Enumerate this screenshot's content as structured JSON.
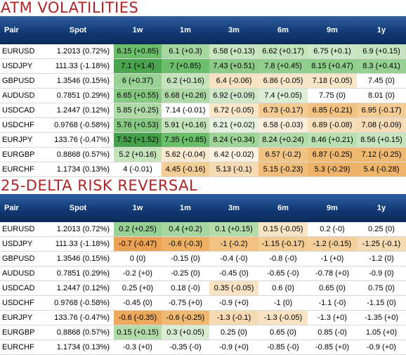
{
  "atm": {
    "title": "ATM VOLATILITIES",
    "headers": [
      "Pair",
      "Spot",
      "1w",
      "1m",
      "3m",
      "6m",
      "9m",
      "1y"
    ],
    "rows": [
      {
        "pair": "EURUSD",
        "spot": "1.2013 (0.72%)",
        "cells": [
          {
            "text": "6.15 (+0.85)",
            "color": "#6bbf6b"
          },
          {
            "text": "6.1 (+0.3)",
            "color": "#a7d7a0"
          },
          {
            "text": "6.58 (+0.13)",
            "color": "#c9e6c1"
          },
          {
            "text": "6.62 (+0.17)",
            "color": "#c3e3ba"
          },
          {
            "text": "6.75 (+0.1)",
            "color": "#cce7c5"
          },
          {
            "text": "6.9 (+0.15)",
            "color": "#c6e4be"
          }
        ]
      },
      {
        "pair": "USDJPY",
        "spot": "111.33 (-1.18%)",
        "cells": [
          {
            "text": "7.1 (+1.4)",
            "color": "#4aa54e"
          },
          {
            "text": "7 (+0.85)",
            "color": "#6bbf6b"
          },
          {
            "text": "7.43 (+0.51)",
            "color": "#8ccc88"
          },
          {
            "text": "7.8 (+0.45)",
            "color": "#92cf8e"
          },
          {
            "text": "8.15 (+0.47)",
            "color": "#90ce8c"
          },
          {
            "text": "8.3 (+0.41)",
            "color": "#96d092"
          }
        ]
      },
      {
        "pair": "GBPUSD",
        "spot": "1.3546 (0.15%)",
        "cells": [
          {
            "text": "6 (+0.37)",
            "color": "#99d295"
          },
          {
            "text": "6.2 (+0.16)",
            "color": "#c5e4bc"
          },
          {
            "text": "6.4 (-0.06)",
            "color": "#f7e2c2"
          },
          {
            "text": "6.86 (-0.05)",
            "color": "#f8e6c9"
          },
          {
            "text": "7.18 (-0.05)",
            "color": "#f8e6c9"
          },
          {
            "text": "7.45 (0)",
            "color": "#ffffff"
          }
        ]
      },
      {
        "pair": "AUDUSD",
        "spot": "0.7851 (0.29%)",
        "cells": [
          {
            "text": "6.65 (+0.55)",
            "color": "#86c982"
          },
          {
            "text": "6.68 (+0.26)",
            "color": "#afdaa7"
          },
          {
            "text": "6.92 (+0.09)",
            "color": "#cee8c7"
          },
          {
            "text": "7.4 (+0.05)",
            "color": "#dcefd6"
          },
          {
            "text": "7.75 (0)",
            "color": "#ffffff"
          },
          {
            "text": "8.01 (0)",
            "color": "#ffffff"
          }
        ]
      },
      {
        "pair": "USDCAD",
        "spot": "1.2447 (0.12%)",
        "cells": [
          {
            "text": "5.85 (+0.25)",
            "color": "#b0dba8"
          },
          {
            "text": "7.14 (-0.01)",
            "color": "#ffffff"
          },
          {
            "text": "6.72 (-0.05)",
            "color": "#f8e6c9"
          },
          {
            "text": "6.73 (-0.17)",
            "color": "#f3cc94"
          },
          {
            "text": "6.85 (-0.21)",
            "color": "#f1c282"
          },
          {
            "text": "6.95 (-0.17)",
            "color": "#f3cc94"
          }
        ]
      },
      {
        "pair": "USDCHF",
        "spot": "0.9768 (-0.58%)",
        "cells": [
          {
            "text": "5.76 (+0.53)",
            "color": "#88ca84"
          },
          {
            "text": "5.91 (+0.16)",
            "color": "#c5e4bc"
          },
          {
            "text": "6.21 (+0.02)",
            "color": "#e6f3e2"
          },
          {
            "text": "6.58 (-0.03)",
            "color": "#fbeedb"
          },
          {
            "text": "6.89 (-0.08)",
            "color": "#f7dfbc"
          },
          {
            "text": "7.08 (-0.09)",
            "color": "#f6dcb6"
          }
        ]
      },
      {
        "pair": "EURJPY",
        "spot": "133.76 (-0.47%)",
        "cells": [
          {
            "text": "7.52 (+1.52)",
            "color": "#45a24a"
          },
          {
            "text": "7.35 (+0.85)",
            "color": "#6bbf6b"
          },
          {
            "text": "8.24 (+0.34)",
            "color": "#9ed498"
          },
          {
            "text": "8.24 (+0.24)",
            "color": "#b1dba9"
          },
          {
            "text": "8.46 (+0.21)",
            "color": "#b8dfb0"
          },
          {
            "text": "8.56 (+0.15)",
            "color": "#c6e4be"
          }
        ]
      },
      {
        "pair": "EURGBP",
        "spot": "0.8868 (0.57%)",
        "cells": [
          {
            "text": "5.2 (+0.16)",
            "color": "#c5e4bc"
          },
          {
            "text": "5.62 (-0.04)",
            "color": "#f9e9d0"
          },
          {
            "text": "6.42 (-0.02)",
            "color": "#fcf2e4"
          },
          {
            "text": "6.57 (-0.2)",
            "color": "#f1c485"
          },
          {
            "text": "6.87 (-0.25)",
            "color": "#efb972"
          },
          {
            "text": "7.12 (-0.25)",
            "color": "#efb972"
          }
        ]
      },
      {
        "pair": "EURCHF",
        "spot": "1.1734 (0.13%)",
        "cells": [
          {
            "text": "4 (-0.01)",
            "color": "#ffffff"
          },
          {
            "text": "4.45 (-0.16)",
            "color": "#f3cd96"
          },
          {
            "text": "5.13 (-0.1)",
            "color": "#f6dab3"
          },
          {
            "text": "5.15 (-0.23)",
            "color": "#f0be7a"
          },
          {
            "text": "5.3 (-0.29)",
            "color": "#eeb368"
          },
          {
            "text": "5.4 (-0.28)",
            "color": "#eeb46a"
          }
        ]
      }
    ]
  },
  "rr": {
    "title": "25-DELTA RISK REVERSAL",
    "headers": [
      "Pair",
      "Spot",
      "1w",
      "1m",
      "3m",
      "6m",
      "9m",
      "1y"
    ],
    "rows": [
      {
        "pair": "EURUSD",
        "spot": "1.2013 (0.72%)",
        "cells": [
          {
            "text": "0.2 (+0.25)",
            "color": "#98d194"
          },
          {
            "text": "0.4 (+0.2)",
            "color": "#a7d7a0"
          },
          {
            "text": "0.1 (+0.15)",
            "color": "#b2dcaa"
          },
          {
            "text": "0.15 (-0.05)",
            "color": "#f8e4c5"
          },
          {
            "text": "0.2 (-0)",
            "color": "#ffffff"
          },
          {
            "text": "0.25 (0)",
            "color": "#ffffff"
          }
        ]
      },
      {
        "pair": "USDJPY",
        "spot": "111.33 (-1.18%)",
        "cells": [
          {
            "text": "-0.7 (-0.47)",
            "color": "#eba255"
          },
          {
            "text": "-0.6 (-0.3)",
            "color": "#eeb064"
          },
          {
            "text": "-1 (-0.2)",
            "color": "#f1c282"
          },
          {
            "text": "-1.15 (-0.17)",
            "color": "#f3cc94"
          },
          {
            "text": "-1.2 (-0.15)",
            "color": "#f4cf9b"
          },
          {
            "text": "-1.25 (-0.1)",
            "color": "#f6dab3"
          }
        ]
      },
      {
        "pair": "GBPUSD",
        "spot": "1.3546 (0.15%)",
        "cells": [
          {
            "text": "0 (0)",
            "color": "#ffffff"
          },
          {
            "text": "-0.15 (0)",
            "color": "#ffffff"
          },
          {
            "text": "-0.4 (-0)",
            "color": "#ffffff"
          },
          {
            "text": "-0.8 (-0)",
            "color": "#ffffff"
          },
          {
            "text": "-1 (+0)",
            "color": "#ffffff"
          },
          {
            "text": "-1.2 (0)",
            "color": "#ffffff"
          }
        ]
      },
      {
        "pair": "AUDUSD",
        "spot": "0.7851 (0.29%)",
        "cells": [
          {
            "text": "-0.2 (+0)",
            "color": "#ffffff"
          },
          {
            "text": "-0.25 (0)",
            "color": "#ffffff"
          },
          {
            "text": "-0.45 (0)",
            "color": "#ffffff"
          },
          {
            "text": "-0.65 (-0)",
            "color": "#ffffff"
          },
          {
            "text": "-0.78 (+0)",
            "color": "#ffffff"
          },
          {
            "text": "-0.9 (0)",
            "color": "#ffffff"
          }
        ]
      },
      {
        "pair": "USDCAD",
        "spot": "1.2447 (0.12%)",
        "cells": [
          {
            "text": "0.25 (+0)",
            "color": "#ffffff"
          },
          {
            "text": "0.18 (-0)",
            "color": "#ffffff"
          },
          {
            "text": "0.35 (-0.05)",
            "color": "#f8e4c5"
          },
          {
            "text": "0.6 (0)",
            "color": "#ffffff"
          },
          {
            "text": "0.65 (0)",
            "color": "#ffffff"
          },
          {
            "text": "0.75 (0)",
            "color": "#ffffff"
          }
        ]
      },
      {
        "pair": "USDCHF",
        "spot": "0.9768 (-0.58%)",
        "cells": [
          {
            "text": "-0.45 (0)",
            "color": "#ffffff"
          },
          {
            "text": "-0.75 (+0)",
            "color": "#ffffff"
          },
          {
            "text": "-0.9 (+0)",
            "color": "#ffffff"
          },
          {
            "text": "-1 (0)",
            "color": "#ffffff"
          },
          {
            "text": "-1.1 (-0)",
            "color": "#ffffff"
          },
          {
            "text": "-1.15 (0)",
            "color": "#ffffff"
          }
        ]
      },
      {
        "pair": "EURJPY",
        "spot": "133.76 (-0.47%)",
        "cells": [
          {
            "text": "-0.6 (-0.35)",
            "color": "#eca95c"
          },
          {
            "text": "-0.6 (-0.25)",
            "color": "#efb972"
          },
          {
            "text": "-1.3 (-0.1)",
            "color": "#f6dab3"
          },
          {
            "text": "-1.3 (-0.05)",
            "color": "#f8e4c5"
          },
          {
            "text": "-1.3 (+0)",
            "color": "#ffffff"
          },
          {
            "text": "-1.35 (+0)",
            "color": "#ffffff"
          }
        ]
      },
      {
        "pair": "EURGBP",
        "spot": "0.8868 (0.57%)",
        "cells": [
          {
            "text": "0.15 (+0.15)",
            "color": "#b2dcaa"
          },
          {
            "text": "0.3 (+0.05)",
            "color": "#d8edd2"
          },
          {
            "text": "0.25 (0)",
            "color": "#ffffff"
          },
          {
            "text": "0.65 (0)",
            "color": "#ffffff"
          },
          {
            "text": "0.85 (-0)",
            "color": "#ffffff"
          },
          {
            "text": "1.05 (+0)",
            "color": "#ffffff"
          }
        ]
      },
      {
        "pair": "EURCHF",
        "spot": "1.1734 (0.13%)",
        "cells": [
          {
            "text": "-0.3 (+0)",
            "color": "#ffffff"
          },
          {
            "text": "-0.35 (-0)",
            "color": "#ffffff"
          },
          {
            "text": "-0.9 (+0)",
            "color": "#ffffff"
          },
          {
            "text": "-0.85 (-0)",
            "color": "#ffffff"
          },
          {
            "text": "-0.85 (+0)",
            "color": "#ffffff"
          },
          {
            "text": "-0.9 (+0)",
            "color": "#ffffff"
          }
        ]
      }
    ]
  }
}
